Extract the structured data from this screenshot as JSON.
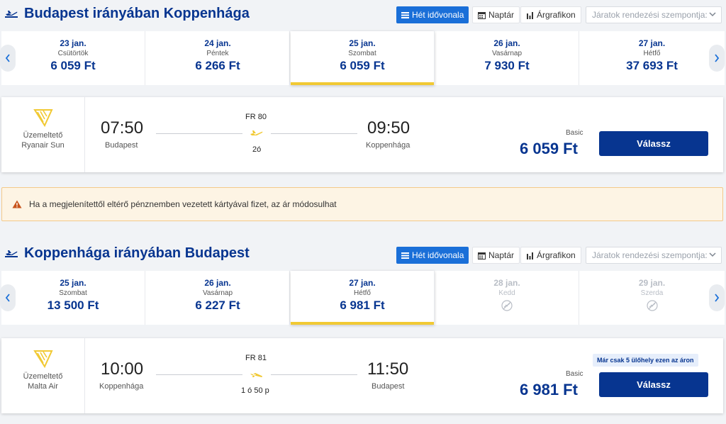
{
  "colors": {
    "primary": "#073590",
    "accent_blue": "#1a6fd8",
    "yellow": "#f1c933",
    "warning_bg": "#fdf4e4"
  },
  "outbound": {
    "title": "Budapest irányában Koppenhága",
    "view_buttons": {
      "timeline": "Hét idővonala",
      "calendar": "Naptár",
      "chart": "Árgrafikon"
    },
    "sort_placeholder": "Járatok rendezési szempontja:",
    "dates": [
      {
        "date": "23 jan.",
        "day": "Csütörtök",
        "price": "6 059 Ft"
      },
      {
        "date": "24 jan.",
        "day": "Péntek",
        "price": "6 266 Ft"
      },
      {
        "date": "25 jan.",
        "day": "Szombat",
        "price": "6 059 Ft"
      },
      {
        "date": "26 jan.",
        "day": "Vasárnap",
        "price": "7 930 Ft"
      },
      {
        "date": "27 jan.",
        "day": "Hétfő",
        "price": "37 693 Ft"
      }
    ],
    "flight": {
      "operator_label": "Üzemeltető",
      "operator_name": "Ryanair Sun",
      "dep_time": "07:50",
      "dep_city": "Budapest",
      "arr_time": "09:50",
      "arr_city": "Koppenhága",
      "flight_number": "FR 80",
      "duration": "2ó",
      "fare_type": "Basic",
      "price": "6 059 Ft",
      "select_label": "Válassz"
    }
  },
  "warning": {
    "text": "Ha a megjelenítettől eltérő pénznemben vezetett kártyával fizet, az ár módosulhat"
  },
  "inbound": {
    "title": "Koppenhága irányában Budapest",
    "view_buttons": {
      "timeline": "Hét idővonala",
      "calendar": "Naptár",
      "chart": "Árgrafikon"
    },
    "sort_placeholder": "Járatok rendezési szempontja:",
    "dates": [
      {
        "date": "25 jan.",
        "day": "Szombat",
        "price": "13 500 Ft"
      },
      {
        "date": "26 jan.",
        "day": "Vasárnap",
        "price": "6 227 Ft"
      },
      {
        "date": "27 jan.",
        "day": "Hétfő",
        "price": "6 981 Ft"
      },
      {
        "date": "28 jan.",
        "day": "Kedd"
      },
      {
        "date": "29 jan.",
        "day": "Szerda"
      }
    ],
    "flight": {
      "operator_label": "Üzemeltető",
      "operator_name": "Malta Air",
      "dep_time": "10:00",
      "dep_city": "Koppenhága",
      "arr_time": "11:50",
      "arr_city": "Budapest",
      "flight_number": "FR 81",
      "duration": "1 ó 50 p",
      "seats_badge": "Már csak 5 ülőhely ezen az áron",
      "fare_type": "Basic",
      "price": "6 981 Ft",
      "select_label": "Válassz"
    }
  }
}
